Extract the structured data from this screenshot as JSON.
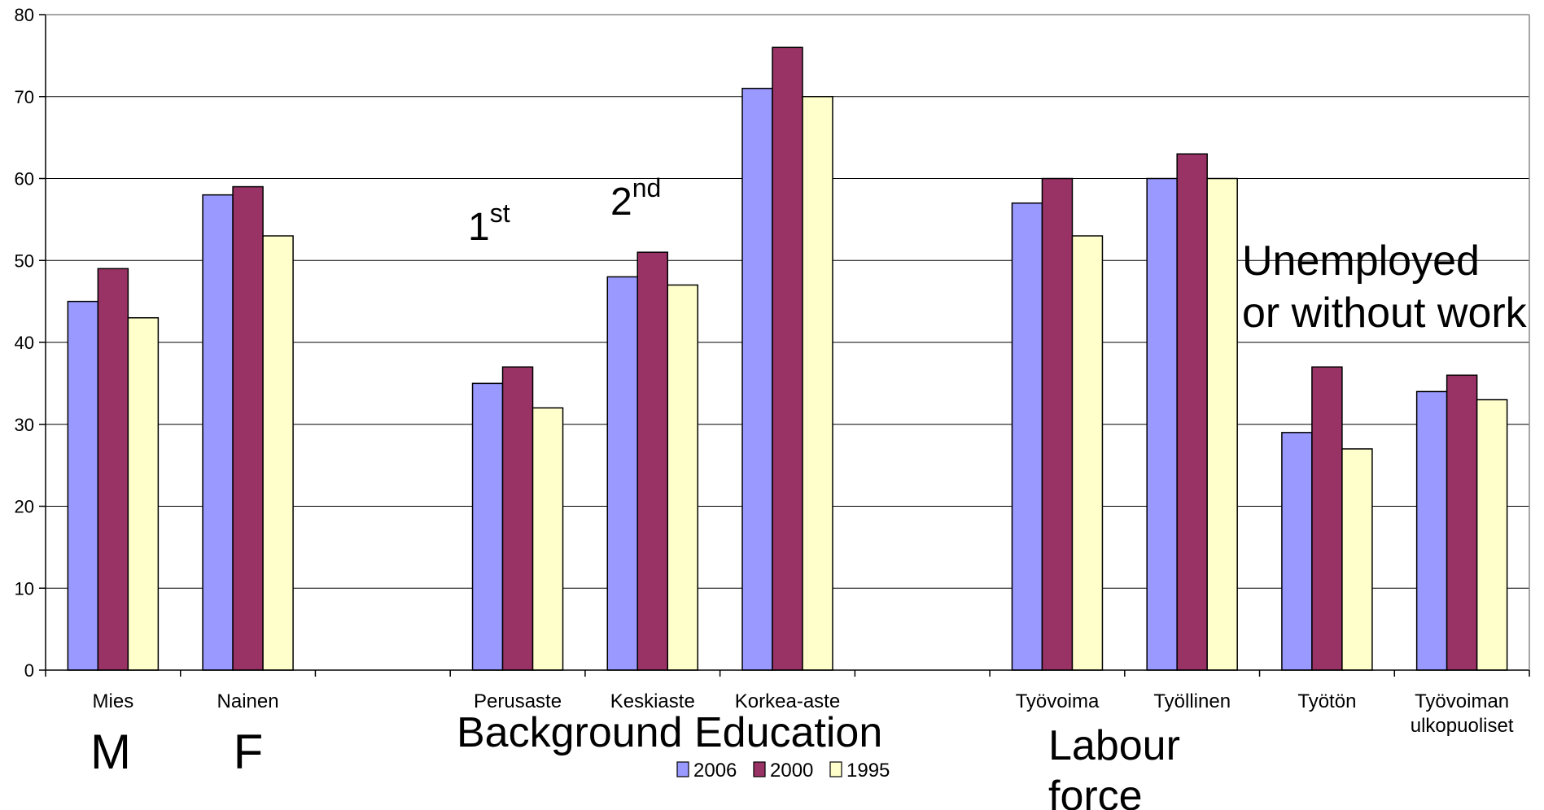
{
  "chart_data": {
    "type": "bar",
    "categories": [
      "Mies",
      "Nainen",
      "",
      "Perusaste",
      "Keskiaste",
      "Korkea-aste",
      "",
      "Työvoima",
      "Työllinen",
      "Työtön",
      "Työvoiman ulkopuoliset"
    ],
    "category_lines": [
      [
        "Mies"
      ],
      [
        "Nainen"
      ],
      [],
      [
        "Perusaste"
      ],
      [
        "Keskiaste"
      ],
      [
        "Korkea-aste"
      ],
      [],
      [
        "Työvoima"
      ],
      [
        "Työllinen"
      ],
      [
        "Työtön"
      ],
      [
        "Työvoiman",
        "ulkopuoliset"
      ]
    ],
    "series": [
      {
        "name": "2006",
        "color": "#9999FF",
        "values": [
          45,
          58,
          null,
          35,
          48,
          71,
          null,
          57,
          60,
          29,
          34
        ]
      },
      {
        "name": "2000",
        "color": "#993366",
        "values": [
          49,
          59,
          null,
          37,
          51,
          76,
          null,
          60,
          63,
          37,
          36
        ]
      },
      {
        "name": "1995",
        "color": "#FFFFCC",
        "values": [
          43,
          53,
          null,
          32,
          47,
          70,
          null,
          53,
          60,
          27,
          33
        ]
      }
    ],
    "ylim": [
      0,
      80
    ],
    "yticks": [
      "0",
      "10",
      "20",
      "30",
      "40",
      "50",
      "60",
      "70",
      "80"
    ],
    "grid": true,
    "legend_position": "bottom-center",
    "annotations": {
      "male": "M",
      "female": "F",
      "first_base": "1",
      "first_sup": "st",
      "second_base": "2",
      "second_sup": "nd",
      "education": "Background Education",
      "labour_line1": "Labour",
      "labour_line2": "force",
      "unemployed_line1": "Unemployed",
      "unemployed_line2": "or without work"
    }
  }
}
